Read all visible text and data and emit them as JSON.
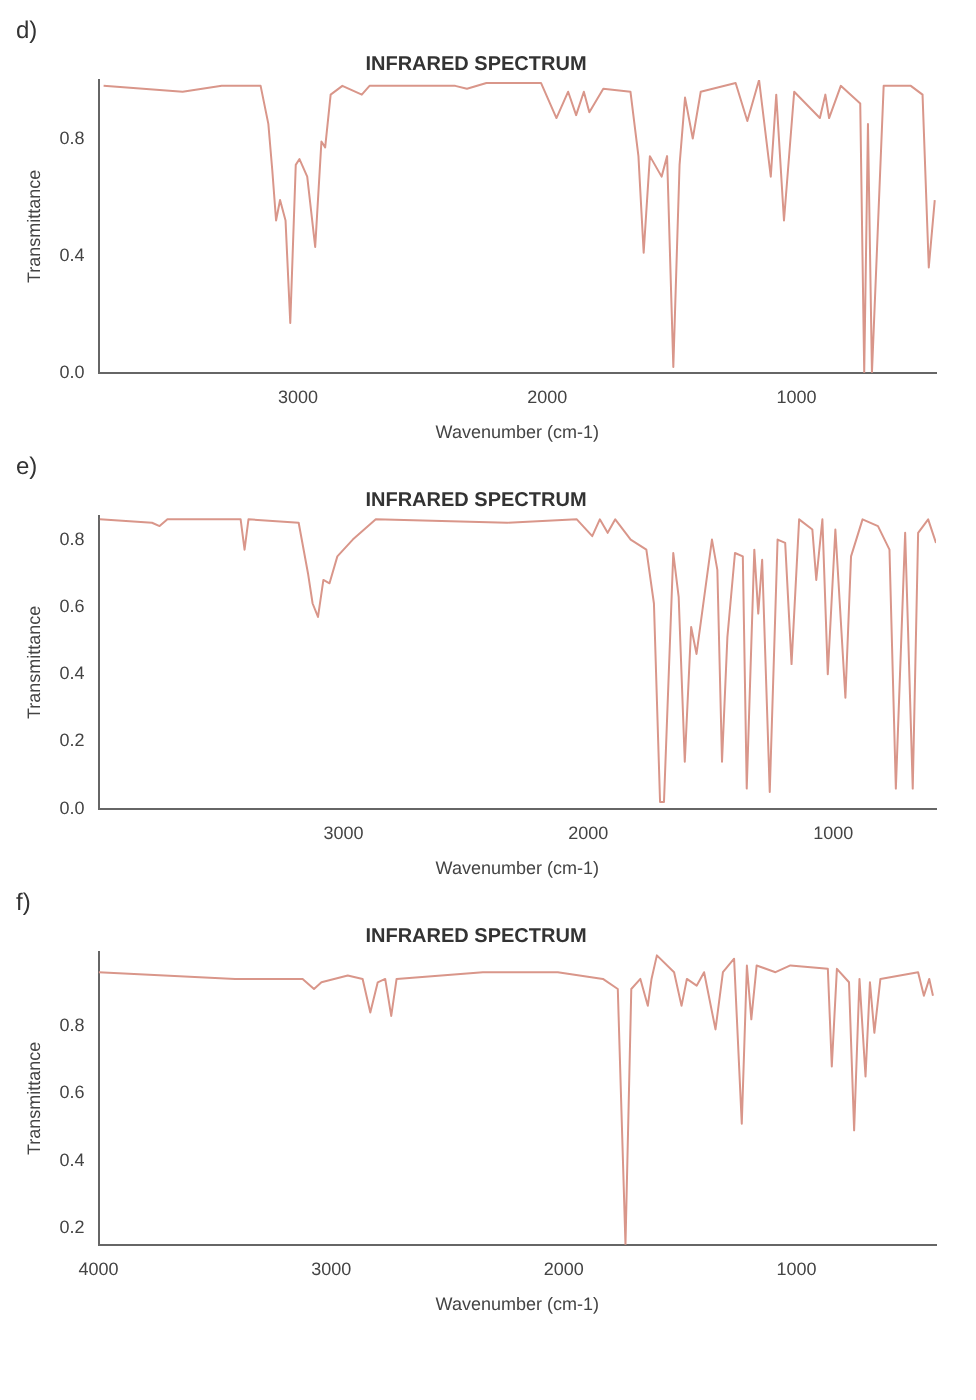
{
  "chart_data": [
    {
      "type": "line",
      "title": "INFRARED SPECTRUM",
      "xlabel": "Wavenumber (cm-1)",
      "ylabel": "Transmittance",
      "annotations": [
        "d)"
      ],
      "xlim": [
        3800,
        440
      ],
      "xticks": [
        3000,
        2000,
        1000
      ],
      "ylim": [
        0,
        1
      ],
      "yticks": [
        {
          "value": 0,
          "label": "0.0"
        },
        0.4,
        0.8
      ],
      "grid": false,
      "legend": false,
      "series": [
        {
          "color": "#d9968a",
          "x": [
            3780,
            3463,
            3306,
            3150,
            3119,
            3103,
            3088,
            3072,
            3050,
            3031,
            3009,
            2994,
            2963,
            2931,
            2906,
            2891,
            2869,
            2822,
            2744,
            2713,
            2369,
            2322,
            2244,
            2025,
            1963,
            1916,
            1884,
            1853,
            1831,
            1775,
            1666,
            1634,
            1613,
            1588,
            1541,
            1519,
            1494,
            1469,
            1447,
            1416,
            1384,
            1244,
            1197,
            1150,
            1103,
            1081,
            1050,
            1009,
            906,
            884,
            869,
            822,
            744,
            728,
            713,
            697,
            650,
            541,
            494,
            469,
            445
          ],
          "values": [
            0.98,
            0.96,
            0.98,
            0.98,
            0.85,
            0.69,
            0.52,
            0.59,
            0.52,
            0.17,
            0.71,
            0.73,
            0.67,
            0.43,
            0.79,
            0.77,
            0.95,
            0.98,
            0.95,
            0.98,
            0.98,
            0.97,
            0.99,
            0.99,
            0.87,
            0.96,
            0.88,
            0.96,
            0.89,
            0.97,
            0.96,
            0.74,
            0.41,
            0.74,
            0.67,
            0.74,
            0.02,
            0.71,
            0.94,
            0.8,
            0.96,
            0.99,
            0.86,
            1.0,
            0.67,
            0.95,
            0.52,
            0.96,
            0.87,
            0.95,
            0.87,
            0.98,
            0.92,
            0,
            0.85,
            0,
            0.98,
            0.98,
            0.95,
            0.36,
            0.59
          ]
        }
      ]
    },
    {
      "type": "line",
      "title": "INFRARED SPECTRUM",
      "xlabel": "Wavenumber (cm-1)",
      "ylabel": "Transmittance",
      "annotations": [
        "e)"
      ],
      "xlim": [
        4000,
        580
      ],
      "xticks": [
        3000,
        2000,
        1000
      ],
      "ylim": [
        0,
        0.87
      ],
      "yticks": [
        {
          "value": 0,
          "label": "0.0"
        },
        0.2,
        0.4,
        0.6,
        0.8
      ],
      "grid": false,
      "legend": false,
      "series": [
        {
          "color": "#d9968a",
          "x": [
            3995,
            3782,
            3751,
            3719,
            3420,
            3404,
            3388,
            3183,
            3145,
            3126,
            3104,
            3082,
            3057,
            3025,
            2962,
            2868,
            2331,
            2047,
            1984,
            1953,
            1921,
            1890,
            1827,
            1763,
            1732,
            1707,
            1691,
            1653,
            1631,
            1606,
            1580,
            1558,
            1495,
            1473,
            1454,
            1432,
            1401,
            1369,
            1353,
            1322,
            1306,
            1290,
            1259,
            1227,
            1196,
            1170,
            1139,
            1085,
            1069,
            1044,
            1022,
            991,
            950,
            927,
            880,
            817,
            770,
            744,
            706,
            675,
            653,
            612,
            580
          ],
          "values": [
            0.86,
            0.85,
            0.84,
            0.86,
            0.86,
            0.77,
            0.86,
            0.85,
            0.7,
            0.61,
            0.57,
            0.68,
            0.67,
            0.75,
            0.8,
            0.86,
            0.85,
            0.86,
            0.81,
            0.86,
            0.82,
            0.86,
            0.8,
            0.77,
            0.61,
            0.02,
            0.02,
            0.76,
            0.63,
            0.14,
            0.54,
            0.46,
            0.8,
            0.71,
            0.14,
            0.51,
            0.76,
            0.75,
            0.06,
            0.77,
            0.58,
            0.74,
            0.05,
            0.8,
            0.79,
            0.43,
            0.86,
            0.83,
            0.68,
            0.86,
            0.4,
            0.83,
            0.33,
            0.75,
            0.86,
            0.84,
            0.77,
            0.06,
            0.82,
            0.06,
            0.82,
            0.86,
            0.79
          ]
        }
      ]
    },
    {
      "type": "line",
      "title": "INFRARED SPECTRUM",
      "xlabel": "Wavenumber (cm-1)",
      "ylabel": "Transmittance",
      "annotations": [
        "f)"
      ],
      "xlim": [
        4000,
        400
      ],
      "xticks": [
        4000,
        3000,
        2000,
        1000
      ],
      "ylim": [
        0.15,
        1.02
      ],
      "yticks": [
        0.2,
        0.4,
        0.6,
        0.8
      ],
      "grid": false,
      "legend": false,
      "series": [
        {
          "color": "#d9968a",
          "x": [
            4000,
            3413,
            3123,
            3074,
            3042,
            2929,
            2865,
            2832,
            2800,
            2768,
            2742,
            2719,
            2348,
            2026,
            1832,
            1768,
            1735,
            1710,
            1671,
            1639,
            1623,
            1600,
            1526,
            1494,
            1471,
            1429,
            1397,
            1348,
            1316,
            1268,
            1235,
            1213,
            1194,
            1171,
            1090,
            1026,
            865,
            848,
            826,
            774,
            752,
            729,
            703,
            684,
            665,
            639,
            477,
            452,
            429,
            413
          ],
          "values": [
            0.96,
            0.94,
            0.94,
            0.91,
            0.93,
            0.95,
            0.94,
            0.84,
            0.93,
            0.94,
            0.83,
            0.94,
            0.96,
            0.96,
            0.94,
            0.91,
            0.15,
            0.91,
            0.94,
            0.86,
            0.94,
            1.01,
            0.96,
            0.86,
            0.94,
            0.92,
            0.96,
            0.79,
            0.96,
            1.0,
            0.51,
            0.98,
            0.82,
            0.98,
            0.96,
            0.98,
            0.97,
            0.68,
            0.97,
            0.93,
            0.49,
            0.94,
            0.65,
            0.93,
            0.78,
            0.94,
            0.96,
            0.89,
            0.94,
            0.89
          ]
        }
      ]
    }
  ]
}
